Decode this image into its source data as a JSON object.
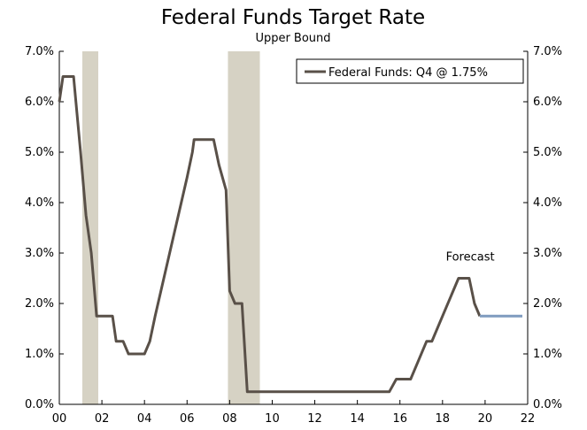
{
  "chart_data": {
    "type": "line",
    "title": "Federal Funds Target Rate",
    "subtitle": "Upper Bound",
    "xlabel": "",
    "ylabel": "",
    "xlim": [
      2000,
      2022
    ],
    "ylim": [
      0,
      7
    ],
    "x_ticks": [
      {
        "value": 2000,
        "label": "00"
      },
      {
        "value": 2002,
        "label": "02"
      },
      {
        "value": 2004,
        "label": "04"
      },
      {
        "value": 2006,
        "label": "06"
      },
      {
        "value": 2008,
        "label": "08"
      },
      {
        "value": 2010,
        "label": "10"
      },
      {
        "value": 2012,
        "label": "12"
      },
      {
        "value": 2014,
        "label": "14"
      },
      {
        "value": 2016,
        "label": "16"
      },
      {
        "value": 2018,
        "label": "18"
      },
      {
        "value": 2020,
        "label": "20"
      },
      {
        "value": 2022,
        "label": "22"
      }
    ],
    "y_ticks_left": [
      {
        "value": 0,
        "label": "0.0%"
      },
      {
        "value": 1,
        "label": "1.0%"
      },
      {
        "value": 2,
        "label": "2.0%"
      },
      {
        "value": 3,
        "label": "3.0%"
      },
      {
        "value": 4,
        "label": "4.0%"
      },
      {
        "value": 5,
        "label": "5.0%"
      },
      {
        "value": 6,
        "label": "6.0%"
      },
      {
        "value": 7,
        "label": "7.0%"
      }
    ],
    "y_ticks_right": [
      {
        "value": 0,
        "label": "0.0%"
      },
      {
        "value": 1,
        "label": "1.0%"
      },
      {
        "value": 2,
        "label": "2.0%"
      },
      {
        "value": 3,
        "label": "3.0%"
      },
      {
        "value": 4,
        "label": "4.0%"
      },
      {
        "value": 5,
        "label": "5.0%"
      },
      {
        "value": 6,
        "label": "6.0%"
      },
      {
        "value": 7,
        "label": "7.0%"
      }
    ],
    "recessions": [
      {
        "start": 2001.08,
        "end": 2001.83
      },
      {
        "start": 2007.92,
        "end": 2009.42
      }
    ],
    "series": [
      {
        "name": "Federal Funds: Q4 @ 1.75%",
        "color": "#595048",
        "points": [
          [
            2000.0,
            6.0
          ],
          [
            2000.17,
            6.5
          ],
          [
            2000.67,
            6.5
          ],
          [
            2001.0,
            5.0
          ],
          [
            2001.25,
            3.75
          ],
          [
            2001.5,
            3.0
          ],
          [
            2001.75,
            1.75
          ],
          [
            2002.5,
            1.75
          ],
          [
            2002.67,
            1.25
          ],
          [
            2003.0,
            1.25
          ],
          [
            2003.25,
            1.0
          ],
          [
            2004.0,
            1.0
          ],
          [
            2004.25,
            1.25
          ],
          [
            2004.5,
            1.75
          ],
          [
            2006.0,
            4.5
          ],
          [
            2006.25,
            5.0
          ],
          [
            2006.33,
            5.25
          ],
          [
            2007.25,
            5.25
          ],
          [
            2007.5,
            4.75
          ],
          [
            2007.83,
            4.25
          ],
          [
            2008.0,
            2.25
          ],
          [
            2008.25,
            2.0
          ],
          [
            2008.58,
            2.0
          ],
          [
            2008.83,
            0.25
          ],
          [
            2015.5,
            0.25
          ],
          [
            2015.83,
            0.5
          ],
          [
            2016.5,
            0.5
          ],
          [
            2016.75,
            0.75
          ],
          [
            2017.25,
            1.25
          ],
          [
            2017.5,
            1.25
          ],
          [
            2018.0,
            1.75
          ],
          [
            2018.75,
            2.5
          ],
          [
            2019.25,
            2.5
          ],
          [
            2019.5,
            2.0
          ],
          [
            2019.75,
            1.75
          ]
        ]
      },
      {
        "name": "Forecast",
        "color": "#7f9bbf",
        "points": [
          [
            2019.75,
            1.75
          ],
          [
            2021.75,
            1.75
          ]
        ]
      }
    ],
    "legend": {
      "entries": [
        "Federal Funds: Q4 @ 1.75%"
      ],
      "placement": "top-right"
    },
    "annotations": [
      {
        "text": "Forecast",
        "x": 2019.3,
        "y": 2.85
      }
    ],
    "recession_color": "#d6d2c4",
    "axis_color": "#000000"
  }
}
